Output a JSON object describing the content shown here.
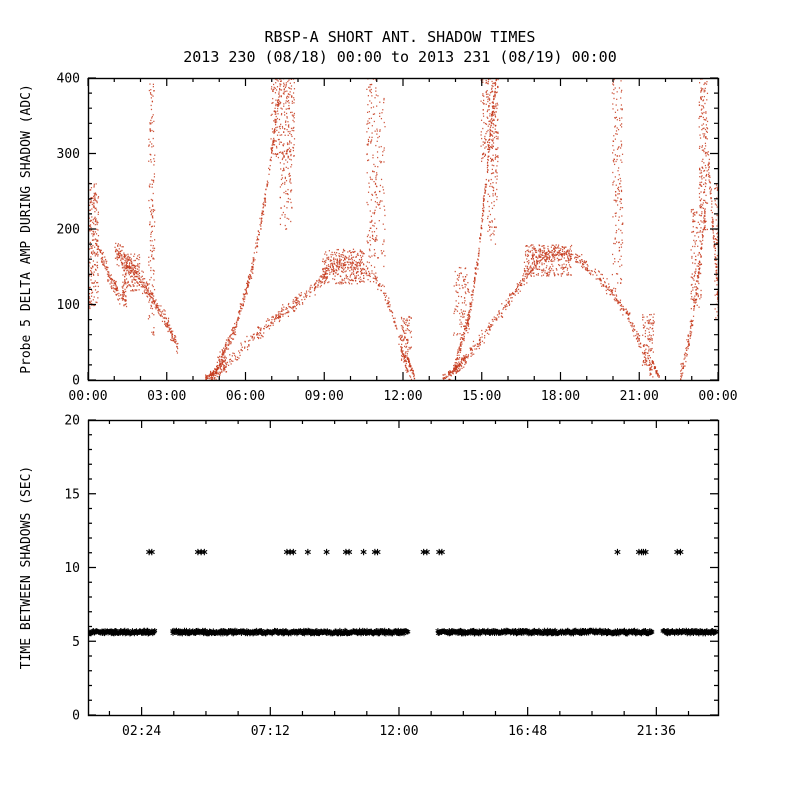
{
  "figure": {
    "title": "RBSP-A SHORT ANT. SHADOW TIMES",
    "subtitle": "2013 230 (08/18) 00:00 to 2013 231 (08/19) 00:00",
    "background": "#ffffff",
    "axis_color": "#000000"
  },
  "chart_data": [
    {
      "type": "scatter",
      "panel": "top",
      "title": "RBSP-A SHORT ANT. SHADOW TIMES",
      "subtitle": "2013 230 (08/18) 00:00 to 2013 231 (08/19) 00:00",
      "xlabel": "",
      "ylabel": "Probe 5 DELTA AMP DURING SHADOW (ADC)",
      "marker": "dot",
      "marker_color": "#c63a1c",
      "xlim_hours": [
        0,
        24
      ],
      "ylim": [
        0,
        400
      ],
      "xtick_hours": [
        0,
        3,
        6,
        9,
        12,
        15,
        18,
        21,
        24
      ],
      "xtick_labels": [
        "00:00",
        "03:00",
        "06:00",
        "09:00",
        "12:00",
        "15:00",
        "18:00",
        "21:00",
        "00:00"
      ],
      "ytick_values": [
        0,
        100,
        200,
        300,
        400
      ],
      "ytick_labels": [
        "0",
        "100",
        "200",
        "300",
        "400"
      ],
      "x_minor_step": 1,
      "y_minor_step": 20,
      "grid": false,
      "density_clusters": [
        {
          "kind": "box",
          "x": [
            0.0,
            0.38
          ],
          "y": [
            95,
            262
          ],
          "n": 200
        },
        {
          "kind": "band",
          "path": [
            [
              0.3,
              182
            ],
            [
              0.9,
              128
            ],
            [
              1.45,
              105
            ]
          ],
          "spread": 16,
          "n": 150
        },
        {
          "kind": "band",
          "path": [
            [
              1.0,
              172
            ],
            [
              1.6,
              150
            ],
            [
              2.15,
              128
            ]
          ],
          "spread": 22,
          "n": 170
        },
        {
          "kind": "box",
          "x": [
            1.3,
            1.95
          ],
          "y": [
            118,
            168
          ],
          "n": 130
        },
        {
          "kind": "band",
          "path": [
            [
              2.15,
              124
            ],
            [
              2.75,
              92
            ],
            [
              3.4,
              44
            ]
          ],
          "spread": 15,
          "n": 170
        },
        {
          "kind": "box",
          "x": [
            2.28,
            2.52
          ],
          "y": [
            60,
            400
          ],
          "n": 140
        },
        {
          "kind": "band",
          "path": [
            [
              4.45,
              3
            ],
            [
              4.85,
              12
            ],
            [
              5.25,
              30
            ]
          ],
          "spread": 6,
          "n": 90
        },
        {
          "kind": "band",
          "path": [
            [
              4.85,
              15
            ],
            [
              5.6,
              70
            ],
            [
              6.25,
              150
            ],
            [
              6.75,
              245
            ],
            [
              7.1,
              335
            ],
            [
              7.35,
              400
            ]
          ],
          "spread": 14,
          "n": 330
        },
        {
          "kind": "box",
          "x": [
            6.95,
            7.85
          ],
          "y": [
            295,
            400
          ],
          "n": 240
        },
        {
          "kind": "box",
          "x": [
            7.3,
            7.75
          ],
          "y": [
            200,
            305
          ],
          "n": 80
        },
        {
          "kind": "band",
          "path": [
            [
              4.6,
              2
            ],
            [
              5.4,
              25
            ],
            [
              6.2,
              55
            ],
            [
              7.0,
              80
            ],
            [
              7.8,
              100
            ],
            [
              8.6,
              124
            ],
            [
              9.2,
              148
            ],
            [
              9.7,
              162
            ],
            [
              10.2,
              152
            ],
            [
              10.7,
              142
            ],
            [
              11.2,
              122
            ],
            [
              11.7,
              75
            ],
            [
              12.05,
              25
            ],
            [
              12.3,
              4
            ]
          ],
          "spread": 13,
          "n": 540
        },
        {
          "kind": "box",
          "x": [
            8.9,
            10.5
          ],
          "y": [
            128,
            174
          ],
          "n": 260
        },
        {
          "kind": "box",
          "x": [
            10.6,
            11.0
          ],
          "y": [
            150,
            400
          ],
          "n": 150
        },
        {
          "kind": "box",
          "x": [
            11.0,
            11.3
          ],
          "y": [
            150,
            380
          ],
          "n": 60
        },
        {
          "kind": "box",
          "x": [
            11.9,
            12.3
          ],
          "y": [
            25,
            85
          ],
          "n": 90
        },
        {
          "kind": "band",
          "path": [
            [
              12.15,
              30
            ],
            [
              12.42,
              5
            ]
          ],
          "spread": 6,
          "n": 45
        },
        {
          "kind": "band",
          "path": [
            [
              13.5,
              3
            ],
            [
              13.95,
              14
            ],
            [
              14.35,
              32
            ]
          ],
          "spread": 6,
          "n": 85
        },
        {
          "kind": "box",
          "x": [
            13.9,
            14.5
          ],
          "y": [
            60,
            150
          ],
          "n": 90
        },
        {
          "kind": "band",
          "path": [
            [
              13.95,
              20
            ],
            [
              14.45,
              78
            ],
            [
              14.85,
              165
            ],
            [
              15.15,
              265
            ],
            [
              15.4,
              365
            ],
            [
              15.55,
              400
            ]
          ],
          "spread": 16,
          "n": 290
        },
        {
          "kind": "box",
          "x": [
            14.95,
            15.6
          ],
          "y": [
            290,
            400
          ],
          "n": 210
        },
        {
          "kind": "box",
          "x": [
            15.2,
            15.58
          ],
          "y": [
            180,
            295
          ],
          "n": 70
        },
        {
          "kind": "band",
          "path": [
            [
              13.7,
              2
            ],
            [
              14.5,
              35
            ],
            [
              15.3,
              70
            ],
            [
              16.0,
              105
            ],
            [
              16.7,
              140
            ],
            [
              17.3,
              165
            ],
            [
              17.9,
              173
            ],
            [
              18.5,
              163
            ],
            [
              19.1,
              148
            ],
            [
              19.7,
              126
            ],
            [
              20.3,
              100
            ],
            [
              20.8,
              68
            ],
            [
              21.2,
              30
            ],
            [
              21.5,
              6
            ]
          ],
          "spread": 13,
          "n": 560
        },
        {
          "kind": "box",
          "x": [
            16.6,
            18.4
          ],
          "y": [
            138,
            180
          ],
          "n": 280
        },
        {
          "kind": "box",
          "x": [
            19.95,
            20.35
          ],
          "y": [
            120,
            400
          ],
          "n": 160
        },
        {
          "kind": "box",
          "x": [
            21.1,
            21.55
          ],
          "y": [
            18,
            88
          ],
          "n": 100
        },
        {
          "kind": "band",
          "path": [
            [
              21.45,
              26
            ],
            [
              21.75,
              4
            ]
          ],
          "spread": 5,
          "n": 40
        },
        {
          "kind": "band",
          "path": [
            [
              22.55,
              6
            ],
            [
              22.9,
              55
            ],
            [
              23.2,
              130
            ],
            [
              23.5,
              225
            ]
          ],
          "spread": 20,
          "n": 150
        },
        {
          "kind": "box",
          "x": [
            22.95,
            23.35
          ],
          "y": [
            95,
            235
          ],
          "n": 120
        },
        {
          "kind": "box",
          "x": [
            23.25,
            23.58
          ],
          "y": [
            200,
            400
          ],
          "n": 170
        },
        {
          "kind": "band",
          "path": [
            [
              23.6,
              295
            ],
            [
              23.8,
              200
            ],
            [
              23.98,
              115
            ]
          ],
          "spread": 26,
          "n": 90
        },
        {
          "kind": "box",
          "x": [
            23.85,
            24.0
          ],
          "y": [
            80,
            260
          ],
          "n": 60
        }
      ]
    },
    {
      "type": "scatter",
      "panel": "bottom",
      "xlabel": "",
      "ylabel": "TIME BETWEEN SHADOWS (SEC)",
      "marker": "asterisk",
      "marker_color": "#000000",
      "xlim_hours": [
        0.4,
        23.9
      ],
      "ylim": [
        0,
        20
      ],
      "xtick_hours": [
        2.4,
        7.2,
        12.0,
        16.8,
        21.6
      ],
      "xtick_labels": [
        "02:24",
        "07:12",
        "12:00",
        "16:48",
        "21:36"
      ],
      "ytick_values": [
        0,
        5,
        10,
        15,
        20
      ],
      "ytick_labels": [
        "0",
        "5",
        "10",
        "15",
        "20"
      ],
      "x_minor_step": 1.2,
      "y_minor_step": 1,
      "grid": false,
      "band": {
        "y_sec": 5.62,
        "y_jitter": 0.12,
        "step_hours": 0.022,
        "segments_hours": [
          [
            0.43,
            2.9
          ],
          [
            3.55,
            12.35
          ],
          [
            13.45,
            21.45
          ],
          [
            21.85,
            23.85
          ]
        ]
      },
      "high_points": {
        "y_sec": 11.05,
        "times_hours": [
          2.68,
          2.78,
          4.5,
          4.62,
          4.74,
          7.82,
          7.94,
          8.06,
          8.6,
          9.3,
          10.02,
          10.14,
          10.68,
          11.1,
          11.2,
          12.92,
          13.04,
          13.5,
          13.6,
          20.15,
          20.95,
          21.05,
          21.12,
          21.2,
          22.38,
          22.5
        ]
      }
    }
  ]
}
